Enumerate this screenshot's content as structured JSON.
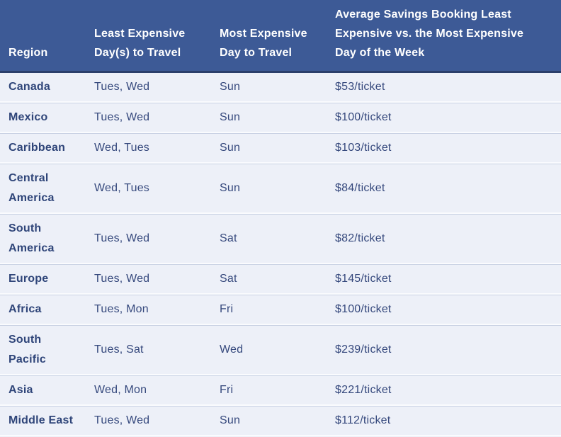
{
  "colors": {
    "header_background": "#3D5A96",
    "header_border": "#2B3F6B",
    "header_text": "#FFFFFF",
    "row_background": "#EDF0F8",
    "row_separator_light": "#FAFBFE",
    "row_separator_dark": "#C9D2E4",
    "body_text": "#36497D",
    "region_text": "#2F4579"
  },
  "chart_data": {
    "type": "table",
    "columns": [
      "Region",
      "Least Expensive Day(s) to Travel",
      "Most Expensive Day to Travel",
      "Average Savings Booking Least Expensive vs. the Most Expensive Day of the Week"
    ],
    "rows": [
      [
        "Canada",
        "Tues, Wed",
        "Sun",
        "$53/ticket"
      ],
      [
        "Mexico",
        "Tues, Wed",
        "Sun",
        "$100/ticket"
      ],
      [
        "Caribbean",
        "Wed, Tues",
        "Sun",
        "$103/ticket"
      ],
      [
        "Central America",
        "Wed, Tues",
        "Sun",
        "$84/ticket"
      ],
      [
        "South America",
        "Tues, Wed",
        "Sat",
        "$82/ticket"
      ],
      [
        "Europe",
        "Tues, Wed",
        "Sat",
        "$145/ticket"
      ],
      [
        "Africa",
        "Tues, Mon",
        "Fri",
        "$100/ticket"
      ],
      [
        "South Pacific",
        "Tues, Sat",
        "Wed",
        "$239/ticket"
      ],
      [
        "Asia",
        "Wed, Mon",
        "Fri",
        "$221/ticket"
      ],
      [
        "Middle East",
        "Tues, Wed",
        "Sun",
        "$112/ticket"
      ]
    ]
  }
}
